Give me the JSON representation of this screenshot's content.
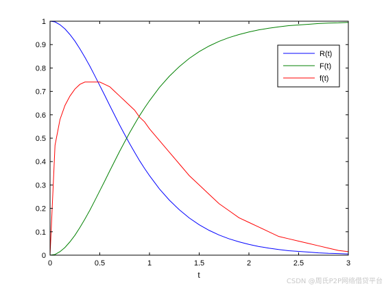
{
  "chart_data": {
    "type": "line",
    "title": "",
    "xlabel": "t",
    "ylabel": "",
    "xlim": [
      0,
      3
    ],
    "ylim": [
      0,
      1
    ],
    "xticks": [
      "0",
      "0.5",
      "1",
      "1.5",
      "2",
      "2.5",
      "3"
    ],
    "xtick_values": [
      0,
      0.5,
      1,
      1.5,
      2,
      2.5,
      3
    ],
    "yticks": [
      "0",
      "0.1",
      "0.2",
      "0.3",
      "0.4",
      "0.5",
      "0.6",
      "0.7",
      "0.8",
      "0.9",
      "1"
    ],
    "ytick_values": [
      0,
      0.1,
      0.2,
      0.3,
      0.4,
      0.5,
      0.6,
      0.7,
      0.8,
      0.9,
      1
    ],
    "grid": false,
    "legend_position": "top-right",
    "x": [
      0,
      0.05,
      0.1,
      0.15,
      0.2,
      0.25,
      0.3,
      0.35,
      0.4,
      0.45,
      0.5,
      0.55,
      0.6,
      0.65,
      0.7,
      0.75,
      0.8,
      0.85,
      0.9,
      0.95,
      1,
      1.1,
      1.2,
      1.3,
      1.4,
      1.5,
      1.6,
      1.7,
      1.8,
      1.9,
      2,
      2.1,
      2.2,
      2.3,
      2.4,
      2.5,
      2.6,
      2.7,
      2.8,
      2.9,
      3
    ],
    "series": [
      {
        "name": "R(t)",
        "color": "#0000ff",
        "values": [
          1,
          0.997,
          0.985,
          0.967,
          0.943,
          0.915,
          0.882,
          0.846,
          0.808,
          0.767,
          0.725,
          0.683,
          0.64,
          0.598,
          0.556,
          0.516,
          0.477,
          0.44,
          0.404,
          0.371,
          0.34,
          0.283,
          0.235,
          0.194,
          0.159,
          0.13,
          0.106,
          0.086,
          0.07,
          0.057,
          0.046,
          0.037,
          0.03,
          0.024,
          0.019,
          0.016,
          0.013,
          0.01,
          0.008,
          0.007,
          0.005
        ]
      },
      {
        "name": "F(t)",
        "color": "#008000",
        "values": [
          0,
          0.003,
          0.015,
          0.033,
          0.057,
          0.085,
          0.118,
          0.154,
          0.192,
          0.233,
          0.275,
          0.317,
          0.36,
          0.402,
          0.444,
          0.484,
          0.523,
          0.56,
          0.596,
          0.629,
          0.66,
          0.717,
          0.765,
          0.806,
          0.841,
          0.87,
          0.894,
          0.914,
          0.93,
          0.943,
          0.954,
          0.963,
          0.97,
          0.976,
          0.981,
          0.984,
          0.987,
          0.99,
          0.992,
          0.993,
          0.995
        ]
      },
      {
        "name": "f(t)",
        "color": "#ff0000",
        "values": [
          0,
          0.47,
          0.58,
          0.64,
          0.68,
          0.71,
          0.73,
          0.74,
          0.74,
          0.74,
          0.74,
          0.73,
          0.72,
          0.7,
          0.68,
          0.66,
          0.64,
          0.62,
          0.59,
          0.57,
          0.54,
          0.49,
          0.44,
          0.39,
          0.34,
          0.3,
          0.26,
          0.22,
          0.19,
          0.16,
          0.14,
          0.12,
          0.1,
          0.08,
          0.07,
          0.06,
          0.05,
          0.04,
          0.03,
          0.02,
          0.015
        ]
      }
    ]
  },
  "watermark": "CSDN @周氏P2P网络借贷平台"
}
